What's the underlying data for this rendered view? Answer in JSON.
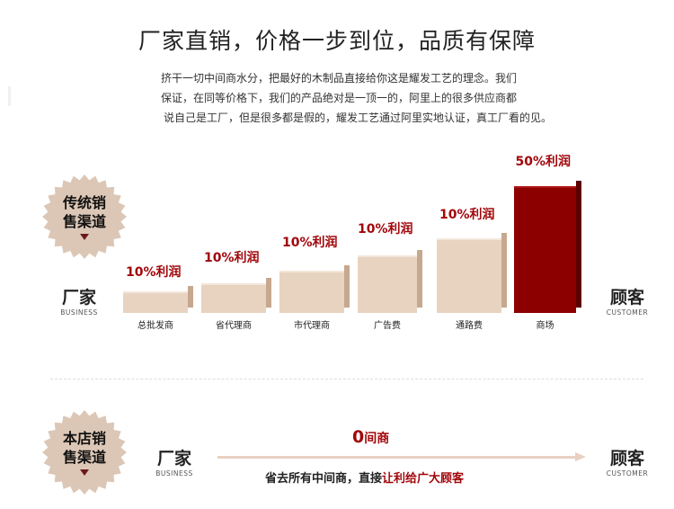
{
  "title": "厂家直销，价格一步到位，品质有保障",
  "intro": [
    "挤干一切中间商水分，把最好的木制品直接给你这是耀发工艺的理念。我们",
    "保证，在同等价格下，我们的产品绝对是一顶一的，阿里上的很多供应商都",
    "说自己是工厂，但是很多都是假的，耀发工艺通过阿里实地认证，真工厂看的见。"
  ],
  "traditional": {
    "badge": [
      "传统销",
      "售渠道"
    ],
    "left": {
      "label": "厂家",
      "en": "BUSINESS"
    },
    "right": {
      "label": "顾客",
      "en": "CUSTOMER"
    },
    "steps": [
      {
        "label": "总批发商",
        "profit": "10%利润"
      },
      {
        "label": "省代理商",
        "profit": "10%利润"
      },
      {
        "label": "市代理商",
        "profit": "10%利润"
      },
      {
        "label": "广告费",
        "profit": "10%利润"
      },
      {
        "label": "通路费",
        "profit": "10%利润"
      },
      {
        "label": "商场",
        "profit": "50%利润"
      }
    ]
  },
  "ours": {
    "badge": [
      "本店销",
      "售渠道"
    ],
    "left": {
      "label": "厂家",
      "en": "BUSINESS"
    },
    "right": {
      "label": "顾客",
      "en": "CUSTOMER"
    },
    "middleman_num": "0",
    "middleman_text": "间商",
    "save_prefix": "省去所有中间商，直接",
    "save_highlight": "让利给广大顾客"
  },
  "colors": {
    "accent": "#a1070b",
    "bar": "#e8d3c0",
    "bar_red": "#8d0000"
  }
}
